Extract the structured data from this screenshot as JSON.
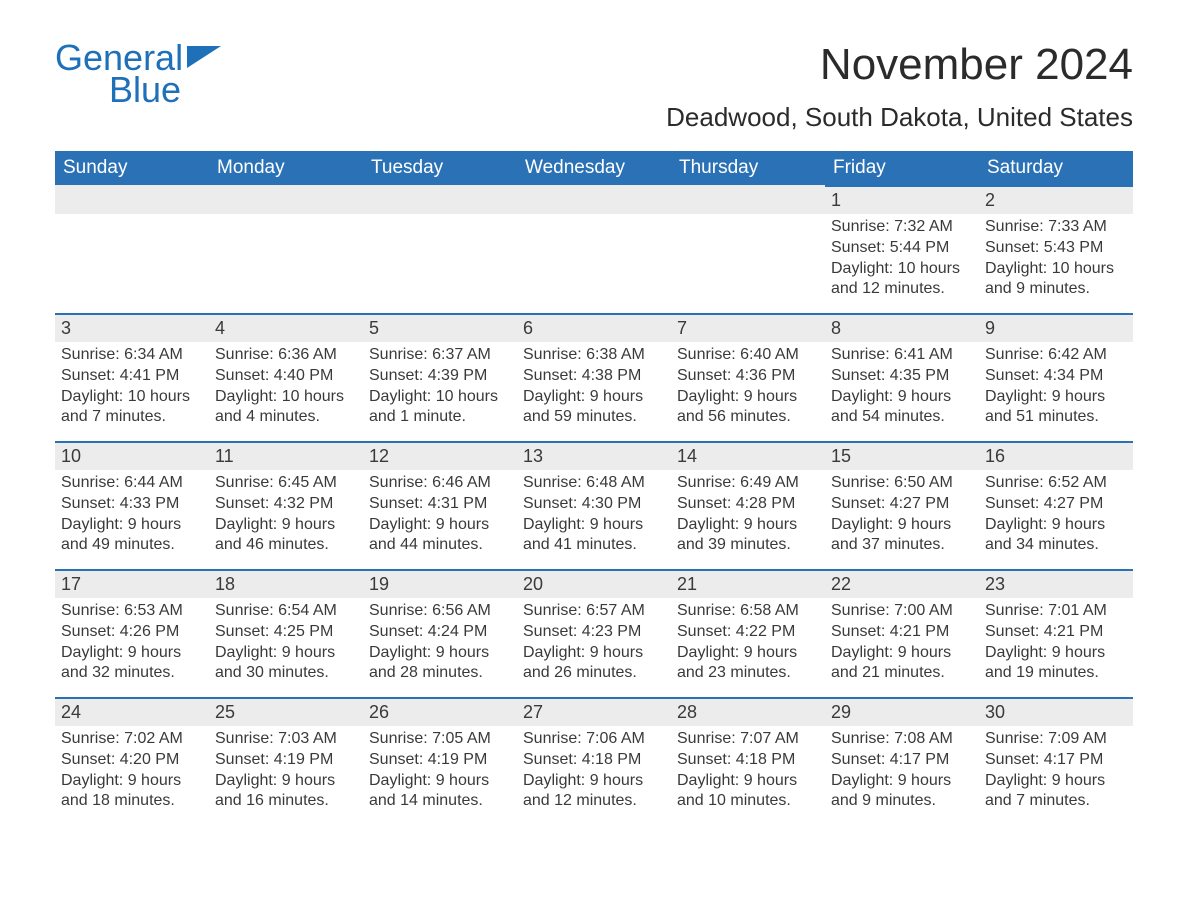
{
  "logo": {
    "word1": "General",
    "word2": "Blue",
    "icon_color": "#1e70b8"
  },
  "title": "November 2024",
  "location": "Deadwood, South Dakota, United States",
  "colors": {
    "header_bg": "#2a72b5",
    "header_text": "#ffffff",
    "daynum_bg": "#ececec",
    "rule": "#2a72b5",
    "body_text": "#3a3a3a",
    "logo": "#1e70b8"
  },
  "fonts": {
    "month_title_pt": 44,
    "location_pt": 26,
    "weekday_pt": 19,
    "daynum_pt": 18,
    "body_pt": 16
  },
  "weekdays": [
    "Sunday",
    "Monday",
    "Tuesday",
    "Wednesday",
    "Thursday",
    "Friday",
    "Saturday"
  ],
  "weeks": [
    [
      null,
      null,
      null,
      null,
      null,
      {
        "n": "1",
        "sunrise": "7:32 AM",
        "sunset": "5:44 PM",
        "daylight": "10 hours and 12 minutes."
      },
      {
        "n": "2",
        "sunrise": "7:33 AM",
        "sunset": "5:43 PM",
        "daylight": "10 hours and 9 minutes."
      }
    ],
    [
      {
        "n": "3",
        "sunrise": "6:34 AM",
        "sunset": "4:41 PM",
        "daylight": "10 hours and 7 minutes."
      },
      {
        "n": "4",
        "sunrise": "6:36 AM",
        "sunset": "4:40 PM",
        "daylight": "10 hours and 4 minutes."
      },
      {
        "n": "5",
        "sunrise": "6:37 AM",
        "sunset": "4:39 PM",
        "daylight": "10 hours and 1 minute."
      },
      {
        "n": "6",
        "sunrise": "6:38 AM",
        "sunset": "4:38 PM",
        "daylight": "9 hours and 59 minutes."
      },
      {
        "n": "7",
        "sunrise": "6:40 AM",
        "sunset": "4:36 PM",
        "daylight": "9 hours and 56 minutes."
      },
      {
        "n": "8",
        "sunrise": "6:41 AM",
        "sunset": "4:35 PM",
        "daylight": "9 hours and 54 minutes."
      },
      {
        "n": "9",
        "sunrise": "6:42 AM",
        "sunset": "4:34 PM",
        "daylight": "9 hours and 51 minutes."
      }
    ],
    [
      {
        "n": "10",
        "sunrise": "6:44 AM",
        "sunset": "4:33 PM",
        "daylight": "9 hours and 49 minutes."
      },
      {
        "n": "11",
        "sunrise": "6:45 AM",
        "sunset": "4:32 PM",
        "daylight": "9 hours and 46 minutes."
      },
      {
        "n": "12",
        "sunrise": "6:46 AM",
        "sunset": "4:31 PM",
        "daylight": "9 hours and 44 minutes."
      },
      {
        "n": "13",
        "sunrise": "6:48 AM",
        "sunset": "4:30 PM",
        "daylight": "9 hours and 41 minutes."
      },
      {
        "n": "14",
        "sunrise": "6:49 AM",
        "sunset": "4:28 PM",
        "daylight": "9 hours and 39 minutes."
      },
      {
        "n": "15",
        "sunrise": "6:50 AM",
        "sunset": "4:27 PM",
        "daylight": "9 hours and 37 minutes."
      },
      {
        "n": "16",
        "sunrise": "6:52 AM",
        "sunset": "4:27 PM",
        "daylight": "9 hours and 34 minutes."
      }
    ],
    [
      {
        "n": "17",
        "sunrise": "6:53 AM",
        "sunset": "4:26 PM",
        "daylight": "9 hours and 32 minutes."
      },
      {
        "n": "18",
        "sunrise": "6:54 AM",
        "sunset": "4:25 PM",
        "daylight": "9 hours and 30 minutes."
      },
      {
        "n": "19",
        "sunrise": "6:56 AM",
        "sunset": "4:24 PM",
        "daylight": "9 hours and 28 minutes."
      },
      {
        "n": "20",
        "sunrise": "6:57 AM",
        "sunset": "4:23 PM",
        "daylight": "9 hours and 26 minutes."
      },
      {
        "n": "21",
        "sunrise": "6:58 AM",
        "sunset": "4:22 PM",
        "daylight": "9 hours and 23 minutes."
      },
      {
        "n": "22",
        "sunrise": "7:00 AM",
        "sunset": "4:21 PM",
        "daylight": "9 hours and 21 minutes."
      },
      {
        "n": "23",
        "sunrise": "7:01 AM",
        "sunset": "4:21 PM",
        "daylight": "9 hours and 19 minutes."
      }
    ],
    [
      {
        "n": "24",
        "sunrise": "7:02 AM",
        "sunset": "4:20 PM",
        "daylight": "9 hours and 18 minutes."
      },
      {
        "n": "25",
        "sunrise": "7:03 AM",
        "sunset": "4:19 PM",
        "daylight": "9 hours and 16 minutes."
      },
      {
        "n": "26",
        "sunrise": "7:05 AM",
        "sunset": "4:19 PM",
        "daylight": "9 hours and 14 minutes."
      },
      {
        "n": "27",
        "sunrise": "7:06 AM",
        "sunset": "4:18 PM",
        "daylight": "9 hours and 12 minutes."
      },
      {
        "n": "28",
        "sunrise": "7:07 AM",
        "sunset": "4:18 PM",
        "daylight": "9 hours and 10 minutes."
      },
      {
        "n": "29",
        "sunrise": "7:08 AM",
        "sunset": "4:17 PM",
        "daylight": "9 hours and 9 minutes."
      },
      {
        "n": "30",
        "sunrise": "7:09 AM",
        "sunset": "4:17 PM",
        "daylight": "9 hours and 7 minutes."
      }
    ]
  ],
  "labels": {
    "sunrise": "Sunrise: ",
    "sunset": "Sunset: ",
    "daylight": "Daylight: "
  }
}
